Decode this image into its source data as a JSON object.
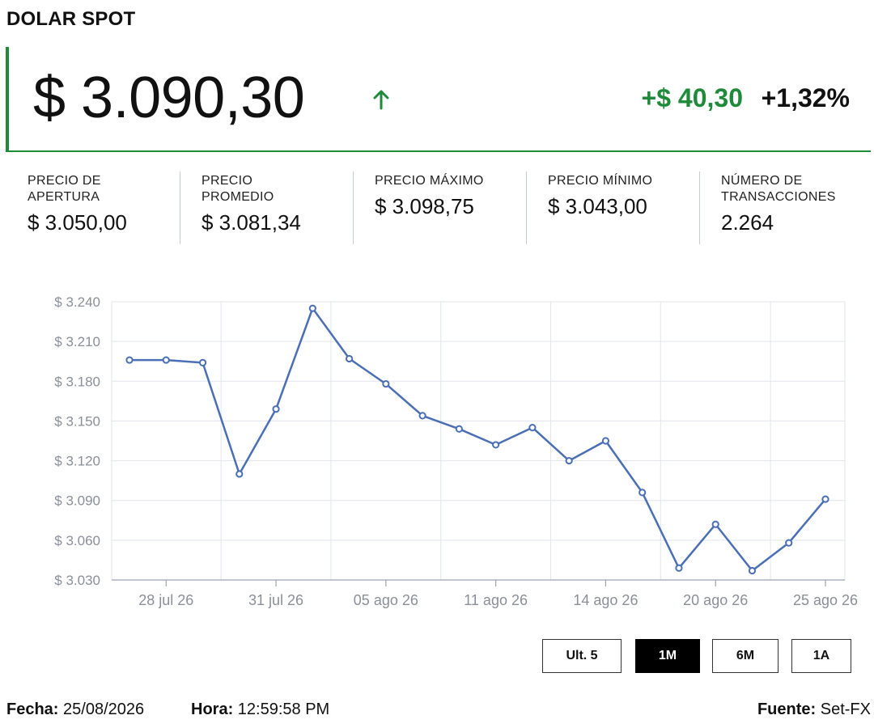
{
  "header": {
    "title": "DOLAR SPOT"
  },
  "quote": {
    "price": "$ 3.090,30",
    "direction_icon": "arrow-up-icon",
    "change_abs": "+$ 40,30",
    "change_pct": "+1,32%",
    "up_color": "#1e8a3a"
  },
  "stats": [
    {
      "label": "PRECIO DE\nAPERTURA",
      "value": "$ 3.050,00"
    },
    {
      "label": "PRECIO\nPROMEDIO",
      "value": "$ 3.081,34"
    },
    {
      "label": "PRECIO MÁXIMO",
      "value": "$ 3.098,75"
    },
    {
      "label": "PRECIO MÍNIMO",
      "value": "$ 3.043,00"
    },
    {
      "label": "NÚMERO DE\nTRANSACCIONES",
      "value": "2.264"
    }
  ],
  "chart_data": {
    "type": "line",
    "title": "",
    "xlabel": "",
    "ylabel": "",
    "ylim": [
      3030,
      3240
    ],
    "y_ticks": [
      3030,
      3060,
      3090,
      3120,
      3150,
      3180,
      3210,
      3240
    ],
    "y_tick_labels": [
      "$ 3.030",
      "$ 3.060",
      "$ 3.090",
      "$ 3.120",
      "$ 3.150",
      "$ 3.180",
      "$ 3.210",
      "$ 3.240"
    ],
    "x_tick_labels": [
      "28 jul 26",
      "31 jul 26",
      "05 ago 26",
      "11 ago 26",
      "14 ago 26",
      "20 ago 26",
      "25 ago 26"
    ],
    "x_tick_indices": [
      1,
      4,
      7,
      10,
      13,
      16,
      19
    ],
    "grid": true,
    "line_color": "#4a6fb5",
    "series": [
      {
        "values": [
          3196,
          3196,
          3194,
          3110,
          3159,
          3235,
          3197,
          3178,
          3154,
          3144,
          3132,
          3145,
          3120,
          3135,
          3096,
          3039,
          3072,
          3037,
          3058,
          3091
        ]
      }
    ]
  },
  "range_buttons": [
    {
      "label": "Ult. 5",
      "active": false
    },
    {
      "label": "1M",
      "active": true
    },
    {
      "label": "6M",
      "active": false
    },
    {
      "label": "1A",
      "active": false
    }
  ],
  "footer": {
    "fecha_label": "Fecha:",
    "fecha_value": "25/08/2026",
    "hora_label": "Hora:",
    "hora_value": "12:59:58 PM",
    "fuente_label": "Fuente:",
    "fuente_value": "Set-FX"
  }
}
